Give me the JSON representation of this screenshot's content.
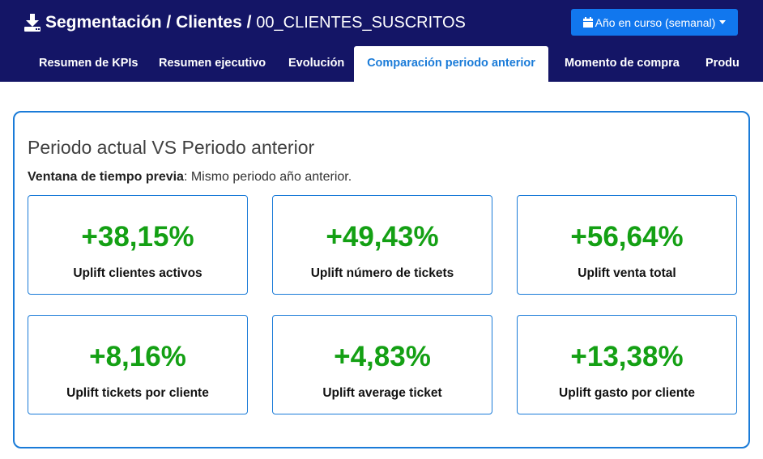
{
  "header": {
    "breadcrumb": [
      "Segmentación",
      "Clientes",
      "00_CLIENTES_SUSCRITOS"
    ],
    "separator": " / ",
    "period_button": "Año en curso (semanal)"
  },
  "tabs": [
    {
      "label": "Resumen de KPIs",
      "active": false
    },
    {
      "label": "Resumen ejecutivo",
      "active": false
    },
    {
      "label": "Evolución",
      "active": false
    },
    {
      "label": "Comparación periodo anterior",
      "active": true
    },
    {
      "label": "Momento de compra",
      "active": false
    },
    {
      "label": "Produ",
      "active": false
    }
  ],
  "card": {
    "title": "Periodo actual VS Periodo anterior",
    "window_label": "Ventana de tiempo previa",
    "window_value": ": Mismo periodo año anterior."
  },
  "kpis": [
    {
      "value": "+38,15%",
      "label": "Uplift clientes activos"
    },
    {
      "value": "+49,43%",
      "label": "Uplift número de tickets"
    },
    {
      "value": "+56,64%",
      "label": "Uplift venta total"
    },
    {
      "value": "+8,16%",
      "label": "Uplift tickets por cliente"
    },
    {
      "value": "+4,83%",
      "label": "Uplift average ticket"
    },
    {
      "value": "+13,38%",
      "label": "Uplift gasto por cliente"
    }
  ],
  "colors": {
    "header_bg": "#141566",
    "accent": "#1a7bd8",
    "button": "#1177ee",
    "positive": "#14a014"
  },
  "icons": {
    "title": "download-icon",
    "period_button": "calendar-icon"
  }
}
